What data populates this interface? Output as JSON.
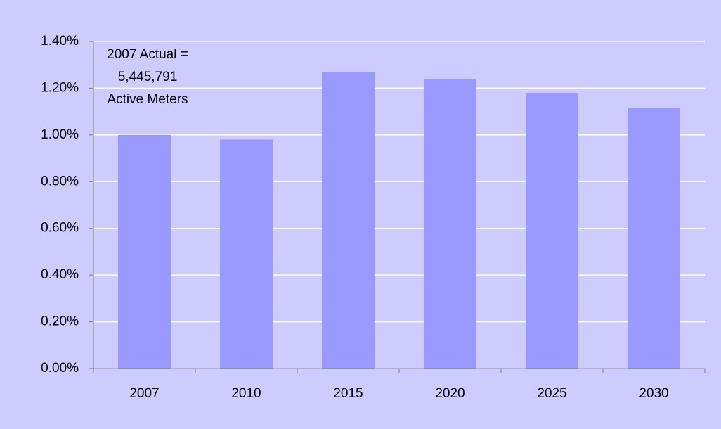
{
  "chart_data": {
    "type": "bar",
    "annotation": [
      "2007 Actual =",
      "5,445,791",
      "Active Meters"
    ],
    "categories": [
      "2007",
      "2010",
      "2015",
      "2020",
      "2025",
      "2030"
    ],
    "values": [
      1.0,
      0.98,
      1.27,
      1.24,
      1.18,
      1.115
    ],
    "color": "#9999ff",
    "background": "#ccccff",
    "ylim": [
      0,
      1.4
    ],
    "yticks": [
      {
        "value": 0,
        "label": "0.00%"
      },
      {
        "value": 0.2,
        "label": "0.20%"
      },
      {
        "value": 0.4,
        "label": "0.40%"
      },
      {
        "value": 0.6,
        "label": "0.60%"
      },
      {
        "value": 0.8,
        "label": "0.80%"
      },
      {
        "value": 1.0,
        "label": "1.00%"
      },
      {
        "value": 1.2,
        "label": "1.20%"
      },
      {
        "value": 1.4,
        "label": "1.40%"
      }
    ],
    "grid": true
  }
}
